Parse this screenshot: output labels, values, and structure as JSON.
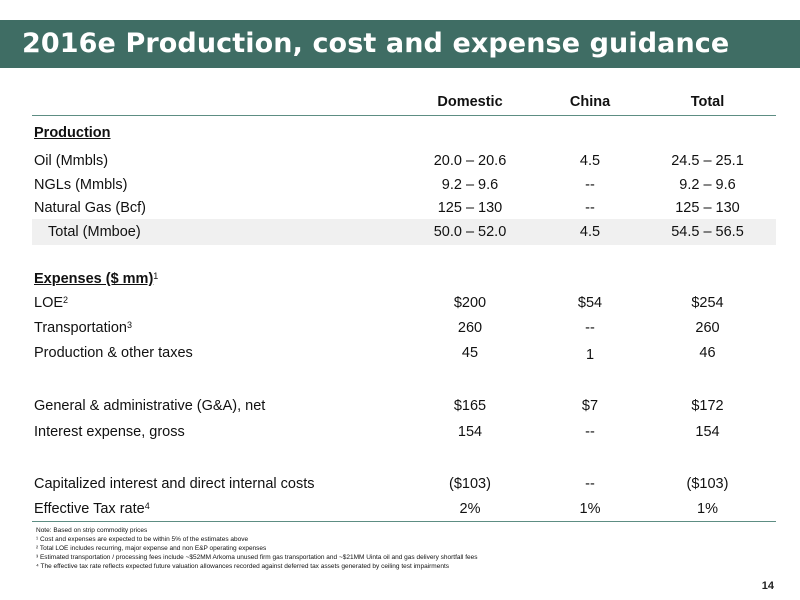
{
  "title": "2016e Production, cost and expense guidance",
  "columns": [
    "Domestic",
    "China",
    "Total"
  ],
  "production": {
    "heading": "Production",
    "rows": [
      {
        "label": "Oil (Mmbls)",
        "domestic": "20.0 – 20.6",
        "china": "4.5",
        "total": "24.5 – 25.1"
      },
      {
        "label": "NGLs (Mmbls)",
        "domestic": "9.2 – 9.6",
        "china": "--",
        "total": "9.2 – 9.6"
      },
      {
        "label": "Natural Gas (Bcf)",
        "domestic": "125 – 130",
        "china": "--",
        "total": "125 – 130"
      },
      {
        "label": "Total (Mmboe)",
        "domestic": "50.0 – 52.0",
        "china": "4.5",
        "total": "54.5 – 56.5"
      }
    ]
  },
  "expenses": {
    "heading": "Expenses ($ mm)",
    "heading_sup": "1",
    "rows": [
      {
        "label": "LOE",
        "sup": "2",
        "domestic": "$200",
        "china": "$54",
        "total": "$254"
      },
      {
        "label": "Transportation",
        "sup": "3",
        "domestic": "260",
        "china": "--",
        "total": "260"
      },
      {
        "label": "Production & other taxes",
        "sup": "",
        "domestic": "45",
        "china": "1",
        "total": "46"
      },
      {
        "label": "General & administrative (G&A), net",
        "sup": "",
        "domestic": "$165",
        "china": "$7",
        "total": "$172"
      },
      {
        "label": "Interest expense, gross",
        "sup": "",
        "domestic": "154",
        "china": "--",
        "total": "154"
      },
      {
        "label": "Capitalized interest and direct internal costs",
        "sup": "",
        "domestic": "($103)",
        "china": "--",
        "total": "($103)"
      },
      {
        "label": "Effective Tax rate",
        "sup": "4",
        "domestic": "2%",
        "china": "1%",
        "total": "1%"
      }
    ]
  },
  "notes": [
    "Note: Based on strip commodity prices",
    "¹ Cost and expenses are expected to be within 5% of the estimates above",
    "² Total LOE includes recurring, major expense and non E&P operating expenses",
    "³ Estimated transportation / processing fees include ~$52MM Arkoma unused firm gas transportation and ~$21MM Uinta oil and gas delivery shortfall fees",
    "⁴ The effective tax rate reflects expected future valuation allowances recorded against deferred tax assets generated by ceiling test impairments"
  ],
  "page_number": "14",
  "colors": {
    "title_bar": "#3f6d64",
    "rule": "#5d8d83",
    "shade": "#f0f0f0"
  }
}
